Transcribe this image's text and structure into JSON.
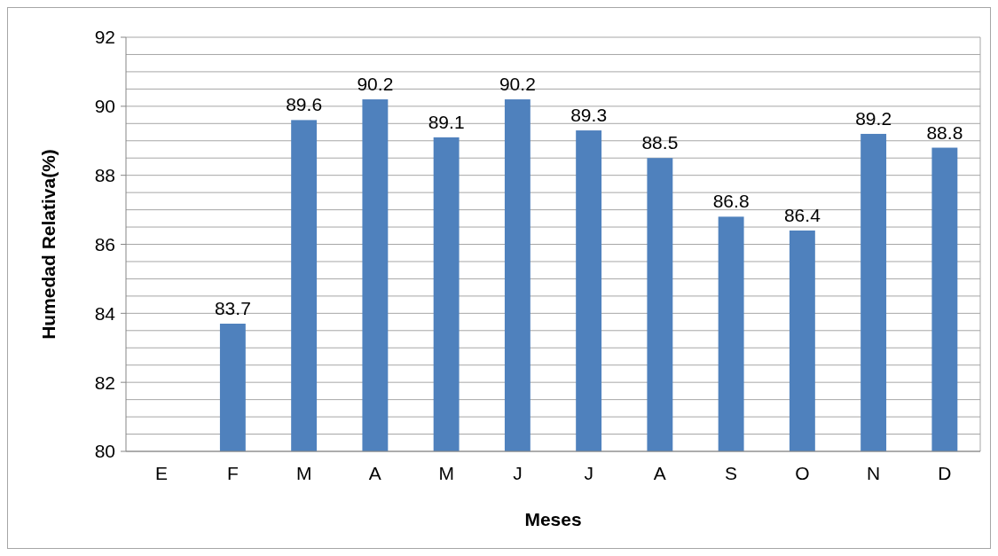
{
  "chart_data": {
    "type": "bar",
    "xlabel": "Meses",
    "ylabel": "Humedad Relativa(%)",
    "categories": [
      "E",
      "F",
      "M",
      "A",
      "M",
      "J",
      "J",
      "A",
      "S",
      "O",
      "N",
      "D"
    ],
    "values": [
      null,
      83.7,
      89.6,
      90.2,
      89.1,
      90.2,
      89.3,
      88.5,
      86.8,
      86.4,
      89.2,
      88.8
    ],
    "color": "#4f81bd",
    "ylim": [
      80,
      92
    ],
    "yticks": [
      80,
      {
        "value": 80.5,
        "label": null
      },
      {
        "value": 81,
        "label": null
      },
      {
        "value": 81.5,
        "label": null
      },
      82,
      {
        "value": 82.5,
        "label": null
      },
      {
        "value": 83,
        "label": null
      },
      {
        "value": 83.5,
        "label": null
      },
      84,
      {
        "value": 84.5,
        "label": null
      },
      {
        "value": 85,
        "label": null
      },
      {
        "value": 85.5,
        "label": null
      },
      86,
      {
        "value": 86.5,
        "label": null
      },
      {
        "value": 87,
        "label": null
      },
      {
        "value": 87.5,
        "label": null
      },
      88,
      {
        "value": 88.5,
        "label": null
      },
      {
        "value": 89,
        "label": null
      },
      {
        "value": 89.5,
        "label": null
      },
      90,
      {
        "value": 90.5,
        "label": null
      },
      {
        "value": 91,
        "label": null
      },
      {
        "value": 91.5,
        "label": null
      },
      92
    ],
    "grid": "y",
    "data_labels": true
  }
}
